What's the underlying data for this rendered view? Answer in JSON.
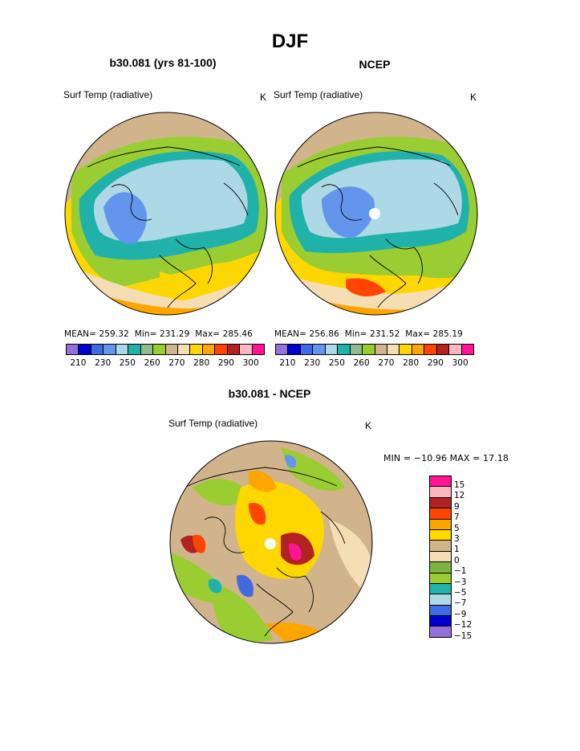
{
  "season": "DJF",
  "panels": [
    {
      "title": "b30.081 (yrs 81-100)",
      "variable": "Surf Temp (radiative)",
      "unit": "K",
      "stats": {
        "mean_label": "MEAN=",
        "mean": "259.32",
        "min_label": "Min=",
        "min": "231.29",
        "max_label": "Max=",
        "max": "285.46"
      }
    },
    {
      "title": "NCEP",
      "variable": "Surf Temp (radiative)",
      "unit": "K",
      "stats": {
        "mean_label": "MEAN=",
        "mean": "256.86",
        "min_label": "Min=",
        "min": "231.52",
        "max_label": "Max=",
        "max": "285.19"
      }
    }
  ],
  "diff": {
    "title": "b30.081 - NCEP",
    "variable": "Surf Temp (radiative)",
    "unit": "K",
    "stats_text": "MIN = −10.96 MAX =   17.18"
  },
  "abs_colorbar": {
    "colors": [
      "#9370db",
      "#0000cd",
      "#4169e1",
      "#6495ed",
      "#add8e6",
      "#20b2aa",
      "#8fbc8f",
      "#9acd32",
      "#d2b48c",
      "#f5deb3",
      "#ffd700",
      "#ffa500",
      "#ff4500",
      "#b22222",
      "#ffb6c1",
      "#ff1493"
    ],
    "labels": [
      "210",
      "230",
      "250",
      "260",
      "270",
      "280",
      "290",
      "300"
    ]
  },
  "diff_colorbar": {
    "colors": [
      "#ff1493",
      "#ffb6c1",
      "#b22222",
      "#ff4500",
      "#ffa500",
      "#ffd700",
      "#d2b48c",
      "#f5deb3",
      "#7cb342",
      "#9acd32",
      "#20b2aa",
      "#add8e6",
      "#4169e1",
      "#0000cd",
      "#9370db"
    ],
    "labels": [
      "15",
      "12",
      "9",
      "7",
      "5",
      "3",
      "1",
      "0",
      "−1",
      "−3",
      "−5",
      "−7",
      "−9",
      "−12",
      "−15"
    ]
  }
}
